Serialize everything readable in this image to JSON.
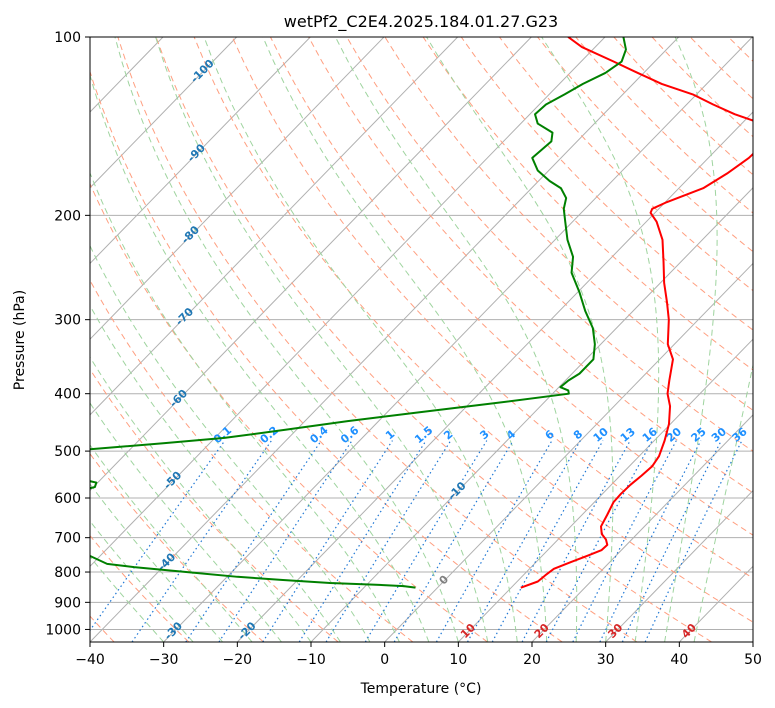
{
  "chart_data": {
    "type": "line",
    "subtype": "skew-T log-P diagram",
    "title": "wetPf2_C2E4.2025.184.01.27.G23",
    "xlabel": "Temperature (°C)",
    "ylabel": "Pressure (hPa)",
    "xlim": [
      -40,
      50
    ],
    "ylim": [
      1050,
      100
    ],
    "y_scale": "log",
    "x_ticks": [
      -40,
      -30,
      -20,
      -10,
      0,
      10,
      20,
      30,
      40,
      50
    ],
    "x_tick_labels": [
      "−40",
      "−30",
      "−20",
      "−10",
      "0",
      "10",
      "20",
      "30",
      "40",
      "50"
    ],
    "y_ticks": [
      100,
      200,
      300,
      400,
      500,
      600,
      700,
      800,
      900,
      1000
    ],
    "y_tick_labels": [
      "100",
      "200",
      "300",
      "400",
      "500",
      "600",
      "700",
      "800",
      "900",
      "1000"
    ],
    "horizontal_grid": true,
    "skewed_isotherms": true,
    "dry_adiabats": true,
    "moist_adiabats": true,
    "mixing_ratio_lines": true,
    "series": [
      {
        "color": "#ff0000",
        "points": [
          [
            850,
            11.3
          ],
          [
            830,
            12.8
          ],
          [
            810,
            13.0
          ],
          [
            790,
            13.3
          ],
          [
            770,
            14.7
          ],
          [
            750,
            16.2
          ],
          [
            735,
            17.3
          ],
          [
            720,
            17.4
          ],
          [
            705,
            16.5
          ],
          [
            690,
            15.2
          ],
          [
            670,
            14.1
          ],
          [
            640,
            13.4
          ],
          [
            610,
            12.6
          ],
          [
            590,
            12.5
          ],
          [
            570,
            12.6
          ],
          [
            550,
            12.9
          ],
          [
            530,
            13.1
          ],
          [
            510,
            12.7
          ],
          [
            480,
            11.4
          ],
          [
            450,
            9.8
          ],
          [
            420,
            7.6
          ],
          [
            400,
            5.6
          ],
          [
            380,
            4.1
          ],
          [
            350,
            1.8
          ],
          [
            330,
            -0.9
          ],
          [
            300,
            -4.0
          ],
          [
            280,
            -6.6
          ],
          [
            260,
            -9.5
          ],
          [
            240,
            -12.3
          ],
          [
            220,
            -15.4
          ],
          [
            205,
            -18.6
          ],
          [
            198,
            -20.6
          ],
          [
            195,
            -20.9
          ],
          [
            190,
            -19.8
          ],
          [
            180,
            -16.7
          ],
          [
            170,
            -15.4
          ],
          [
            160,
            -14.5
          ],
          [
            150,
            -14.3
          ],
          [
            145,
            -15.5
          ],
          [
            140,
            -17.3
          ],
          [
            135,
            -22.2
          ],
          [
            130,
            -26.4
          ],
          [
            125,
            -30.5
          ],
          [
            120,
            -36.1
          ],
          [
            115,
            -40.8
          ],
          [
            110,
            -45.6
          ],
          [
            104,
            -51.8
          ],
          [
            100,
            -55.0
          ]
        ]
      },
      {
        "color": "#008000",
        "points": [
          [
            850,
            -3.0
          ],
          [
            845,
            -4.8
          ],
          [
            840,
            -9.2
          ],
          [
            835,
            -15.2
          ],
          [
            825,
            -22.0
          ],
          [
            815,
            -28.6
          ],
          [
            800,
            -36.2
          ],
          [
            785,
            -43.9
          ],
          [
            775,
            -48.0
          ],
          [
            600,
            -76.0
          ],
          [
            595,
            -66.8
          ],
          [
            590,
            -64.3
          ],
          [
            585,
            -61.8
          ],
          [
            575,
            -59.8
          ],
          [
            565,
            -60.2
          ],
          [
            555,
            -63.7
          ],
          [
            545,
            -70.7
          ],
          [
            535,
            -78.0
          ],
          [
            510,
            -78.0
          ],
          [
            505,
            -72.8
          ],
          [
            495,
            -64.3
          ],
          [
            485,
            -56.3
          ],
          [
            475,
            -48.7
          ],
          [
            460,
            -41.4
          ],
          [
            445,
            -34.2
          ],
          [
            430,
            -25.6
          ],
          [
            415,
            -16.6
          ],
          [
            400,
            -7.8
          ],
          [
            395,
            -8.3
          ],
          [
            390,
            -9.8
          ],
          [
            380,
            -9.6
          ],
          [
            370,
            -9.0
          ],
          [
            350,
            -9.0
          ],
          [
            330,
            -10.8
          ],
          [
            310,
            -13.2
          ],
          [
            290,
            -16.5
          ],
          [
            270,
            -19.7
          ],
          [
            250,
            -23.4
          ],
          [
            235,
            -25.3
          ],
          [
            220,
            -28.3
          ],
          [
            205,
            -31.0
          ],
          [
            195,
            -32.9
          ],
          [
            187,
            -34.0
          ],
          [
            180,
            -36.0
          ],
          [
            175,
            -38.5
          ],
          [
            168,
            -41.5
          ],
          [
            160,
            -43.9
          ],
          [
            150,
            -43.5
          ],
          [
            145,
            -44.5
          ],
          [
            140,
            -47.7
          ],
          [
            135,
            -49.3
          ],
          [
            130,
            -49.1
          ],
          [
            125,
            -47.9
          ],
          [
            120,
            -46.8
          ],
          [
            115,
            -45.2
          ],
          [
            110,
            -44.5
          ],
          [
            105,
            -45.5
          ],
          [
            100,
            -47.5
          ]
        ]
      }
    ],
    "isotherm_labels": [
      {
        "t": -100,
        "text": "-100"
      },
      {
        "t": -90,
        "text": "-90"
      },
      {
        "t": -80,
        "text": "-80"
      },
      {
        "t": -70,
        "text": "-70"
      },
      {
        "t": -60,
        "text": "-60"
      },
      {
        "t": -50,
        "text": "-50"
      },
      {
        "t": -40,
        "text": "-40"
      },
      {
        "t": -30,
        "text": "-30"
      },
      {
        "t": -20,
        "text": "-20"
      },
      {
        "t": -10,
        "text": "-10"
      },
      {
        "t": 0,
        "text": "0"
      },
      {
        "t": 10,
        "text": "10"
      },
      {
        "t": 20,
        "text": "20"
      },
      {
        "t": 30,
        "text": "30"
      },
      {
        "t": 40,
        "text": "40"
      }
    ],
    "mixing_ratio_labels": [
      "0.1",
      "0.2",
      "0.4",
      "0.6",
      "1",
      "1.5",
      "2",
      "3",
      "4",
      "6",
      "8",
      "10",
      "13",
      "16",
      "20",
      "25",
      "30",
      "36"
    ],
    "mixing_ratio_values": [
      0.1,
      0.2,
      0.4,
      0.6,
      1,
      1.5,
      2,
      3,
      4,
      6,
      8,
      10,
      13,
      16,
      20,
      25,
      30,
      36
    ]
  },
  "colors": {
    "temperature": "#ff0000",
    "dewpoint": "#008000",
    "isotherm": "#b0b0b0",
    "isobar": "#b0b0b0",
    "dry_adiabat": "#ff9f80",
    "moist_adiabat": "#9fd49f",
    "mixing_ratio": "#1f77d4",
    "isotherm_label_cold": "#1f77b4",
    "isotherm_label_zero": "#808080",
    "isotherm_label_warm": "#d62728",
    "mixing_ratio_label": "#1e90ff"
  }
}
